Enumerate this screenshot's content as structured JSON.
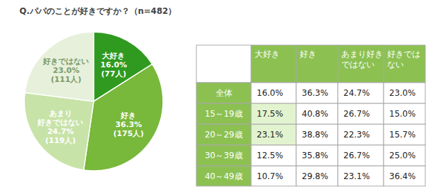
{
  "chart_data": {
    "type": "pie",
    "title": "Q.パパのことが好きですか？（n=482）",
    "categories": [
      "大好き",
      "好き",
      "あまり\n好きではない",
      "好きではない"
    ],
    "values": [
      16.0,
      36.3,
      24.7,
      23.0
    ],
    "value_labels": [
      "16.0%",
      "36.3%",
      "24.7%",
      "23.0%"
    ],
    "count_labels": [
      "(77人)",
      "(175人)",
      "(119人)",
      "(111人)"
    ],
    "colors": [
      "#2f9a1f",
      "#78b83a",
      "#c8e3a8",
      "#e6f0db"
    ],
    "data_labels": true
  },
  "table": {
    "columns": [
      "大好き",
      "好き",
      "あまり好き\nではない",
      "好きでは\nない"
    ],
    "rows": [
      {
        "label": "全体",
        "cells": [
          "16.0%",
          "36.3%",
          "24.7%",
          "23.0%"
        ]
      },
      {
        "label": "15～19歳",
        "cells": [
          "17.5%",
          "40.8%",
          "26.7%",
          "15.0%"
        ]
      },
      {
        "label": "20～29歳",
        "cells": [
          "23.1%",
          "38.8%",
          "22.3%",
          "15.7%"
        ]
      },
      {
        "label": "30～39歳",
        "cells": [
          "12.5%",
          "35.8%",
          "26.7%",
          "25.0%"
        ]
      },
      {
        "label": "40～49歳",
        "cells": [
          "10.7%",
          "29.8%",
          "23.1%",
          "36.4%"
        ]
      }
    ],
    "highlighted_cells": [
      [
        1,
        0
      ],
      [
        2,
        0
      ]
    ]
  }
}
